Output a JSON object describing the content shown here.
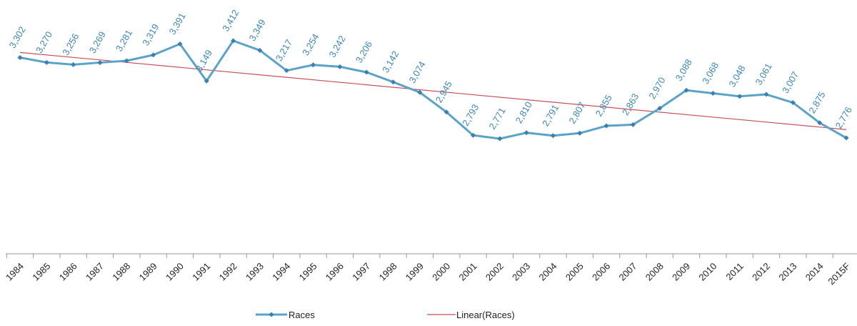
{
  "chart_data": {
    "type": "line",
    "categories": [
      "1984",
      "1985",
      "1986",
      "1987",
      "1988",
      "1989",
      "1990",
      "1991",
      "1992",
      "1993",
      "1994",
      "1995",
      "1996",
      "1997",
      "1998",
      "1999",
      "2000",
      "2001",
      "2002",
      "2003",
      "2004",
      "2005",
      "2006",
      "2007",
      "2008",
      "2009",
      "2010",
      "2011",
      "2012",
      "2013",
      "2014",
      "2015F"
    ],
    "series": [
      {
        "name": "Races",
        "color": "#5ba3c9",
        "marker_color": "#3a7fb0",
        "label_color": "#3b87b5",
        "values": [
          3302,
          3270,
          3256,
          3269,
          3281,
          3319,
          3391,
          3149,
          3412,
          3349,
          3217,
          3254,
          3242,
          3206,
          3142,
          3074,
          2945,
          2793,
          2771,
          2810,
          2791,
          2807,
          2855,
          2863,
          2970,
          3088,
          3068,
          3048,
          3061,
          3007,
          2875,
          2776
        ],
        "value_labels": [
          "3,302",
          "3,270",
          "3,256",
          "3,269",
          "3,281",
          "3,319",
          "3,391",
          "3,149",
          "3,412",
          "3,349",
          "3,217",
          "3,254",
          "3,242",
          "3,206",
          "3,142",
          "3,074",
          "2,945",
          "2,793",
          "2,771",
          "2,810",
          "2,791",
          "2,807",
          "2,855",
          "2,863",
          "2,970",
          "3,088",
          "3,068",
          "3,048",
          "3,061",
          "3,007",
          "2,875",
          "2,776"
        ]
      }
    ],
    "trendline": {
      "name": "Linear(Races)",
      "kind": "linear",
      "color": "#c9505a"
    }
  }
}
